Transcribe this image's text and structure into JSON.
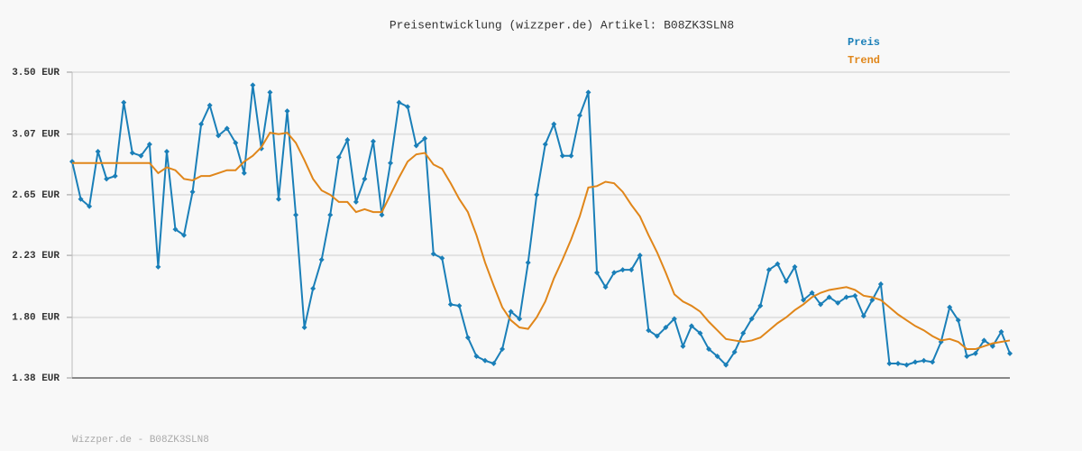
{
  "chart_data": {
    "type": "line",
    "title": "Preisentwicklung (wizzper.de) Artikel: B08ZK3SLN8",
    "footer": "Wizzper.de - B08ZK3SLN8",
    "ylim": [
      1.38,
      3.5
    ],
    "yticks": [
      {
        "value": 1.38,
        "label": "1.38 EUR"
      },
      {
        "value": 1.8,
        "label": "1.80 EUR"
      },
      {
        "value": 2.23,
        "label": "2.23 EUR"
      },
      {
        "value": 2.65,
        "label": "2.65 EUR"
      },
      {
        "value": 3.07,
        "label": "3.07 EUR"
      },
      {
        "value": 3.5,
        "label": "3.50 EUR"
      }
    ],
    "grid": true,
    "legend": "top-right",
    "series": [
      {
        "name": "Preis",
        "color": "#1a7fb8",
        "markers": true,
        "values": [
          2.88,
          2.62,
          2.57,
          2.95,
          2.76,
          2.78,
          3.29,
          2.94,
          2.92,
          3.0,
          2.15,
          2.95,
          2.41,
          2.37,
          2.67,
          3.14,
          3.27,
          3.06,
          3.11,
          3.01,
          2.8,
          3.41,
          2.97,
          3.36,
          2.62,
          3.23,
          2.51,
          1.73,
          2.0,
          2.2,
          2.51,
          2.91,
          3.03,
          2.6,
          2.76,
          3.02,
          2.51,
          2.87,
          3.29,
          3.26,
          2.99,
          3.04,
          2.24,
          2.21,
          1.89,
          1.88,
          1.66,
          1.53,
          1.5,
          1.48,
          1.58,
          1.84,
          1.79,
          2.18,
          2.65,
          3.0,
          3.14,
          2.92,
          2.92,
          3.2,
          3.36,
          2.11,
          2.01,
          2.11,
          2.13,
          2.13,
          2.23,
          1.71,
          1.67,
          1.73,
          1.79,
          1.6,
          1.74,
          1.69,
          1.58,
          1.53,
          1.47,
          1.56,
          1.69,
          1.79,
          1.88,
          2.13,
          2.17,
          2.05,
          2.15,
          1.92,
          1.97,
          1.89,
          1.94,
          1.9,
          1.94,
          1.95,
          1.81,
          1.92,
          2.03,
          1.48,
          1.48,
          1.47,
          1.49,
          1.5,
          1.49,
          1.63,
          1.87,
          1.78,
          1.53,
          1.55,
          1.64,
          1.6,
          1.7,
          1.55
        ]
      },
      {
        "name": "Trend",
        "color": "#e0861a",
        "markers": false,
        "values": [
          2.87,
          2.87,
          2.87,
          2.87,
          2.87,
          2.87,
          2.87,
          2.87,
          2.87,
          2.87,
          2.8,
          2.84,
          2.82,
          2.76,
          2.75,
          2.78,
          2.78,
          2.8,
          2.82,
          2.82,
          2.88,
          2.92,
          2.98,
          3.08,
          3.07,
          3.08,
          3.01,
          2.89,
          2.76,
          2.68,
          2.65,
          2.6,
          2.6,
          2.53,
          2.55,
          2.53,
          2.53,
          2.65,
          2.77,
          2.88,
          2.93,
          2.94,
          2.86,
          2.83,
          2.73,
          2.62,
          2.53,
          2.37,
          2.18,
          2.02,
          1.87,
          1.78,
          1.73,
          1.72,
          1.8,
          1.91,
          2.07,
          2.2,
          2.34,
          2.5,
          2.7,
          2.71,
          2.74,
          2.73,
          2.67,
          2.58,
          2.5,
          2.37,
          2.25,
          2.11,
          1.96,
          1.91,
          1.88,
          1.84,
          1.77,
          1.71,
          1.65,
          1.64,
          1.63,
          1.64,
          1.66,
          1.71,
          1.76,
          1.8,
          1.85,
          1.89,
          1.94,
          1.97,
          1.99,
          2.0,
          2.01,
          1.99,
          1.95,
          1.94,
          1.92,
          1.87,
          1.82,
          1.78,
          1.74,
          1.71,
          1.67,
          1.64,
          1.65,
          1.63,
          1.58,
          1.58,
          1.6,
          1.62,
          1.63,
          1.64
        ]
      }
    ]
  }
}
